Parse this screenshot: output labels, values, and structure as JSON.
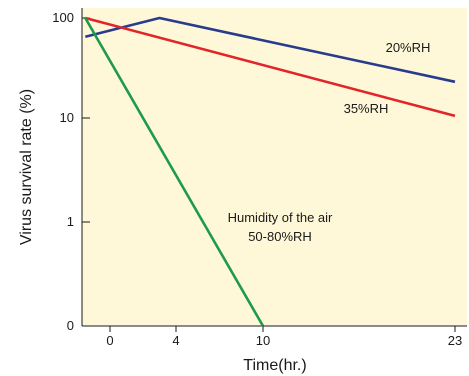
{
  "chart_data": {
    "type": "line",
    "title": "",
    "xlabel": "Time(hr.)",
    "ylabel": "Virus survival rate (%)",
    "x_ticks": [
      0,
      4,
      10,
      23
    ],
    "y_ticks": [
      "100",
      "10",
      "1",
      "0"
    ],
    "y_scale": "log",
    "grid": false,
    "background": "#fff8d8",
    "series": [
      {
        "name": "20%RH",
        "color": "#283c8e",
        "points": [
          [
            -1.5,
            65
          ],
          [
            3,
            100
          ],
          [
            23,
            23
          ]
        ]
      },
      {
        "name": "35%RH",
        "color": "#e0262a",
        "points": [
          [
            -1.5,
            100
          ],
          [
            23,
            10.5
          ]
        ]
      },
      {
        "name": "50-80%RH",
        "color": "#1e9a4a",
        "points": [
          [
            -1.5,
            100
          ],
          [
            10,
            0.1
          ]
        ]
      }
    ],
    "annotations": [
      {
        "series": "20%RH",
        "lines": [
          "20%RH"
        ]
      },
      {
        "series": "35%RH",
        "lines": [
          "35%RH"
        ]
      },
      {
        "series": "50-80%RH",
        "lines": [
          "Humidity of the air",
          "50-80%RH"
        ]
      }
    ]
  }
}
